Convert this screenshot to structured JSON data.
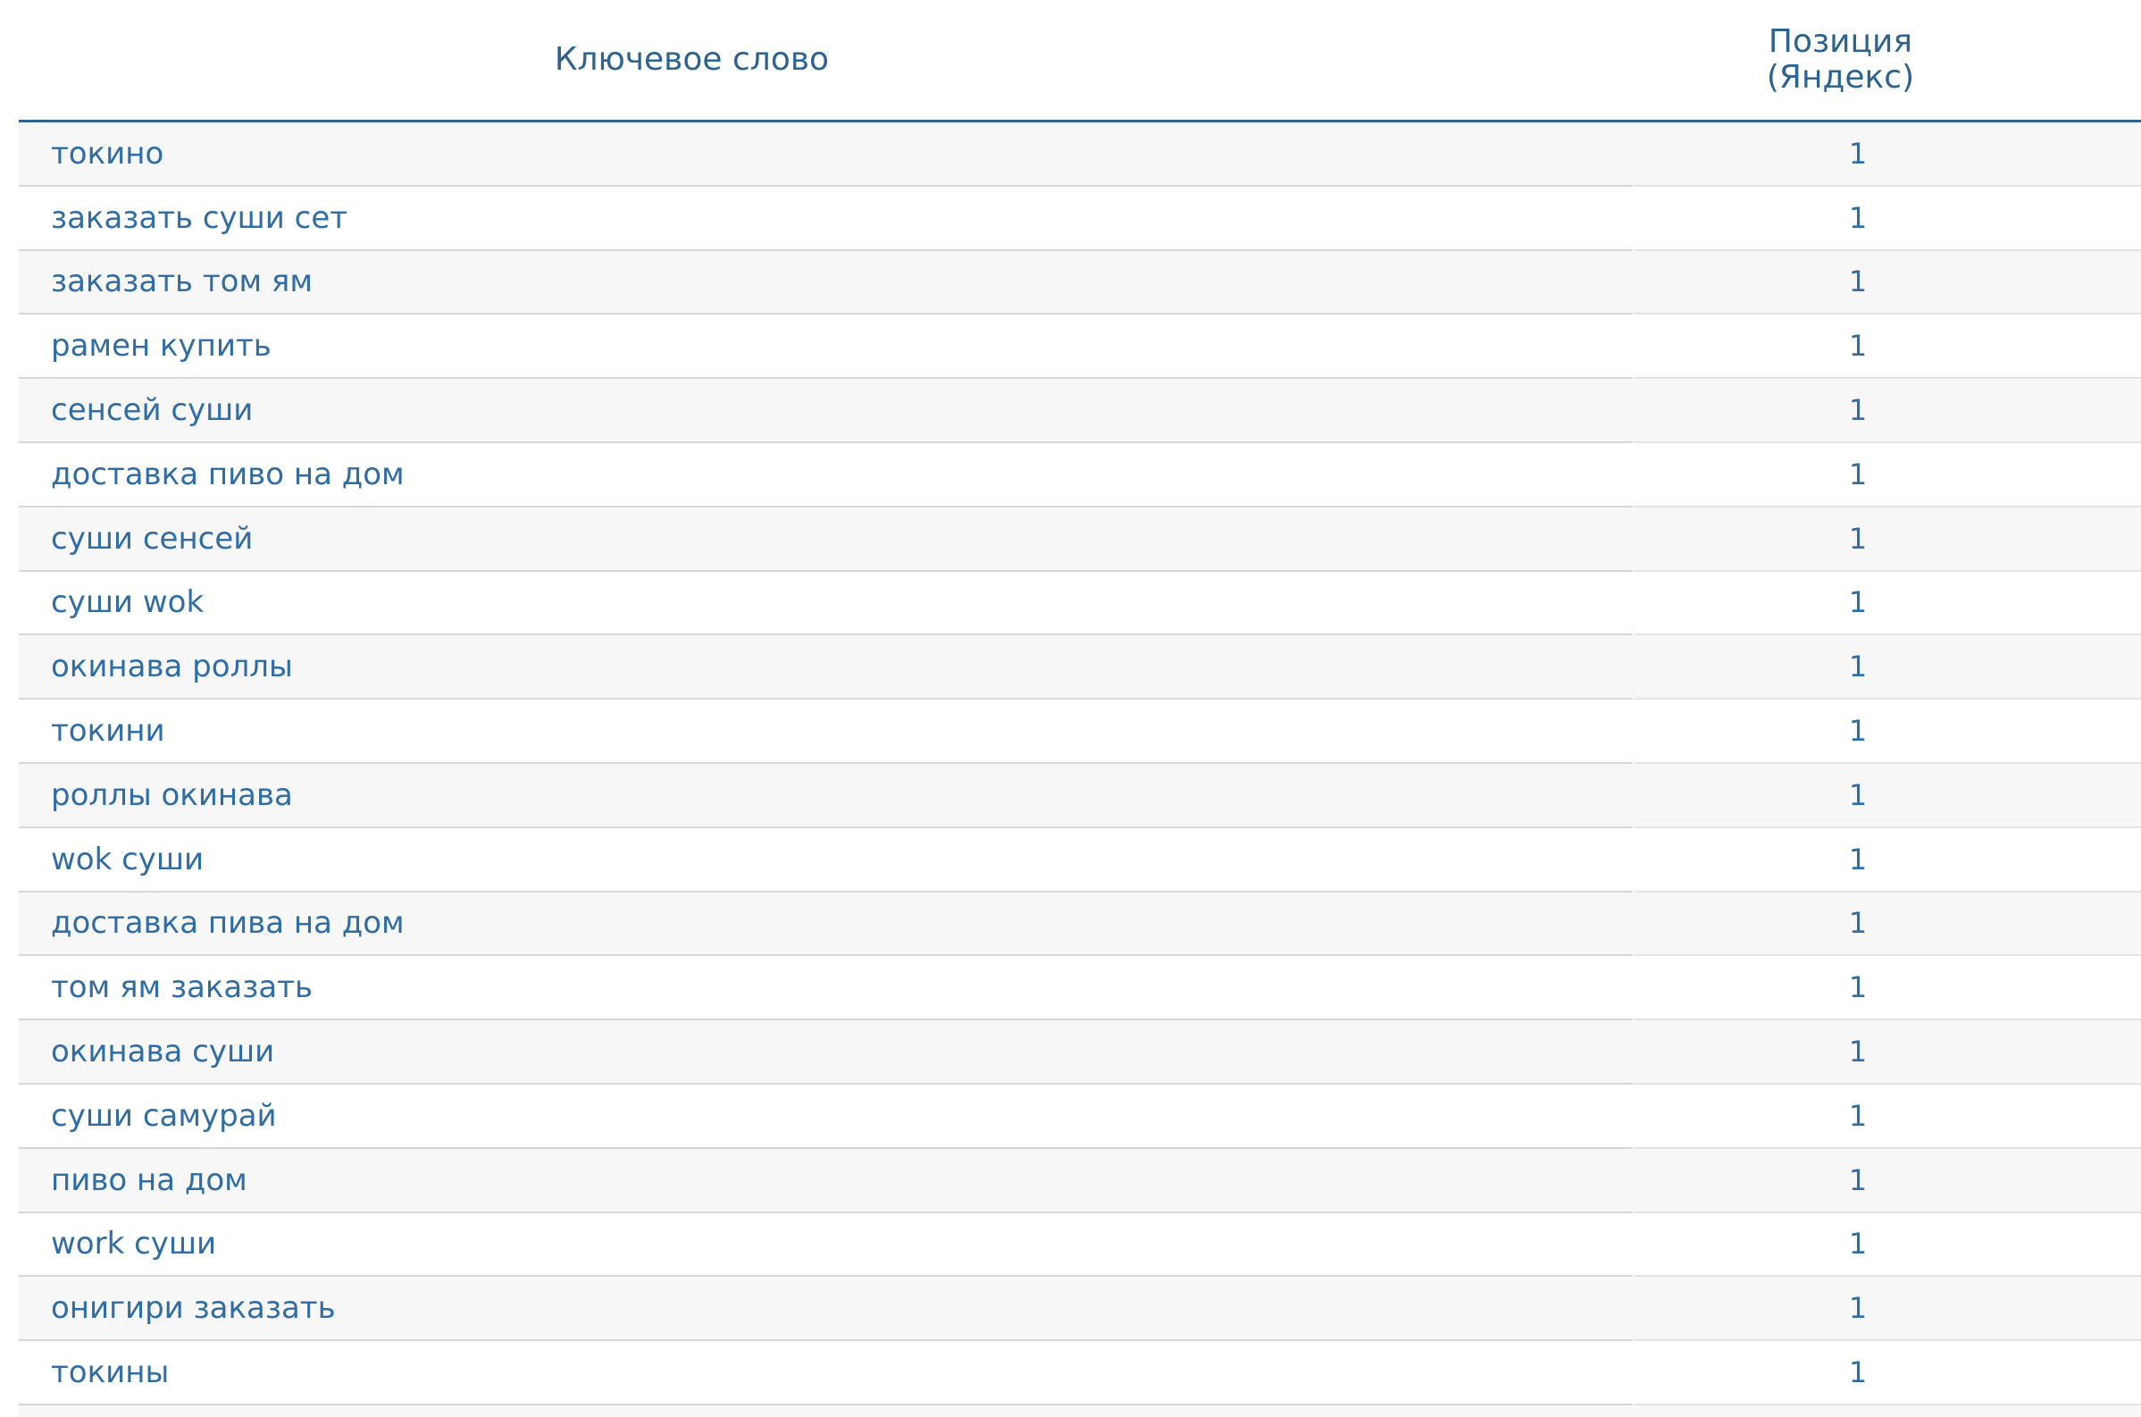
{
  "table": {
    "columns": [
      {
        "id": "keyword",
        "label": "Ключевое слово"
      },
      {
        "id": "position_yandex",
        "label": "Позиция (Яндекс)",
        "label_lines": [
          "Позиция",
          "(Яндекс)"
        ]
      }
    ],
    "rows": [
      {
        "keyword": "токино",
        "position": "1"
      },
      {
        "keyword": "заказать суши сет",
        "position": "1"
      },
      {
        "keyword": "заказать том ям",
        "position": "1"
      },
      {
        "keyword": "рамен купить",
        "position": "1"
      },
      {
        "keyword": "сенсей суши",
        "position": "1"
      },
      {
        "keyword": "доставка пиво на дом",
        "position": "1"
      },
      {
        "keyword": "суши сенсей",
        "position": "1"
      },
      {
        "keyword": "суши wok",
        "position": "1"
      },
      {
        "keyword": "окинава роллы",
        "position": "1"
      },
      {
        "keyword": "токини",
        "position": "1"
      },
      {
        "keyword": "роллы окинава",
        "position": "1"
      },
      {
        "keyword": "wok суши",
        "position": "1"
      },
      {
        "keyword": "доставка пива на дом",
        "position": "1"
      },
      {
        "keyword": "том ям заказать",
        "position": "1"
      },
      {
        "keyword": "окинава суши",
        "position": "1"
      },
      {
        "keyword": "суши самурай",
        "position": "1"
      },
      {
        "keyword": "пиво на дом",
        "position": "1"
      },
      {
        "keyword": "work суши",
        "position": "1"
      },
      {
        "keyword": "онигири заказать",
        "position": "1"
      },
      {
        "keyword": "токины",
        "position": "1"
      }
    ]
  },
  "colors": {
    "header_border": "#2c6191",
    "header_text": "#2d6390",
    "link_text": "#2f6da4",
    "row_alt_bg": "#f7f7f8",
    "row_bg": "#ffffff",
    "sep_primary": "#d7d7d7",
    "sep_secondary": "#e3e3e3"
  }
}
